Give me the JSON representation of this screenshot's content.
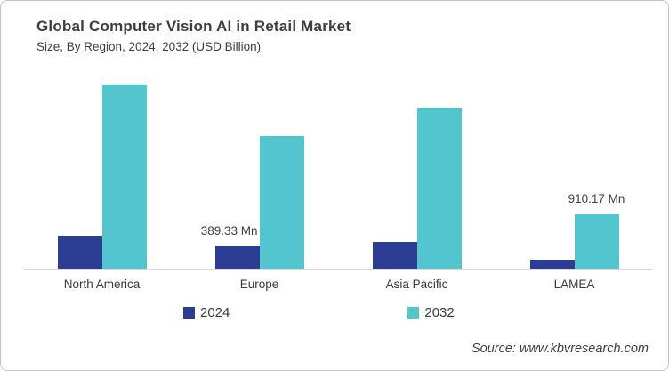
{
  "header": {
    "title": "Global Computer Vision AI in Retail Market",
    "subtitle": "Size, By Region, 2024, 2032 (USD Billion)"
  },
  "footer": {
    "source": "Source: www.kbvresearch.com"
  },
  "chart_data": {
    "type": "bar",
    "title": "Global Computer Vision AI in Retail Market",
    "subtitle": "Size, By Region, 2024, 2032 (USD Billion)",
    "unit": "USD Million",
    "categories": [
      "North America",
      "Europe",
      "Asia Pacific",
      "LAMEA"
    ],
    "series": [
      {
        "name": "2024",
        "color": "#2c3d94",
        "values_mn": [
          550,
          389.33,
          445,
          148
        ]
      },
      {
        "name": "2032",
        "color": "#52c5ce",
        "values_mn": [
          3060,
          2205,
          2680,
          910.17
        ]
      }
    ],
    "data_labels": [
      {
        "category": "Europe",
        "series": "2024",
        "text": "389.33 Mn"
      },
      {
        "category": "LAMEA",
        "series": "2032",
        "text": "910.17 Mn"
      }
    ],
    "ylim_mn": [
      0,
      3250
    ],
    "grid": false,
    "axis_line_color": "#d9d9d9",
    "legend_position": "bottom",
    "source": "Source: www.kbvresearch.com"
  }
}
